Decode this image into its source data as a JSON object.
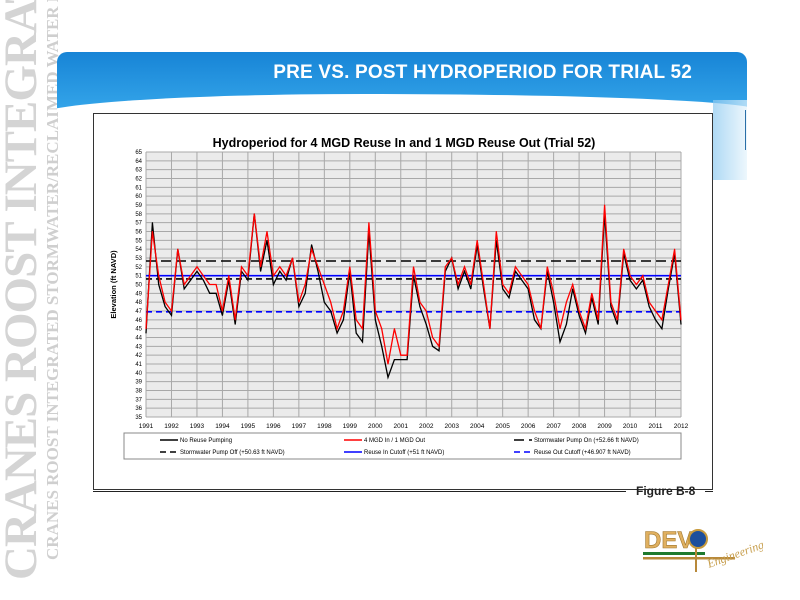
{
  "slide": {
    "title": "PRE VS. POST HYDROPERIOD FOR TRIAL 52",
    "watermark_large": "CRANES ROOST INTEGRATED STORMWATER",
    "watermark_small": "CRANES ROOST INTEGRATED STORMWATER/RECLAIMED WATER FACILITY",
    "figure_label": "Figure B-8",
    "logo_text": "DEVO Engineering",
    "colors": {
      "header": "#1a8ad9",
      "red_series": "#ff0000",
      "black_series": "#000000",
      "blue_lines": "#0000ff",
      "plot_bg": "#ebebeb"
    }
  },
  "chart_data": {
    "type": "line",
    "title": "Hydroperiod for 4 MGD Reuse In and 1 MGD Reuse Out (Trial 52)",
    "xlabel": "",
    "ylabel": "Elevation (ft NAVD)",
    "xlim": [
      1991,
      2012
    ],
    "ylim": [
      35,
      65
    ],
    "xticks": [
      "1991",
      "1992",
      "1993",
      "1994",
      "1995",
      "1996",
      "1997",
      "1998",
      "1999",
      "2000",
      "2001",
      "2002",
      "2003",
      "2004",
      "2005",
      "2006",
      "2007",
      "2008",
      "2009",
      "2010",
      "2011",
      "2012"
    ],
    "yticks": [
      "35",
      "36",
      "37",
      "38",
      "39",
      "40",
      "41",
      "42",
      "43",
      "44",
      "45",
      "46",
      "47",
      "48",
      "49",
      "50",
      "51",
      "52",
      "53",
      "54",
      "55",
      "56",
      "57",
      "58",
      "59",
      "60",
      "61",
      "62",
      "63",
      "64",
      "65"
    ],
    "grid": true,
    "legend_placement": "bottom",
    "x_step_years": 0.25,
    "series": [
      {
        "name": "No Reuse Pumping",
        "color": "#000000",
        "style": "solid",
        "values": [
          44.5,
          57,
          50,
          47.5,
          46.5,
          54,
          49.5,
          50.5,
          51.5,
          50.5,
          49,
          49,
          46.5,
          50.5,
          45.5,
          51.5,
          50.5,
          58,
          51.5,
          55,
          50,
          51.5,
          50.5,
          53,
          47.5,
          49,
          54.5,
          51.5,
          48,
          47,
          44.5,
          46,
          51.5,
          44.5,
          43.5,
          56,
          46,
          43,
          39.5,
          41.5,
          41.5,
          41.5,
          51,
          47.5,
          45.5,
          43,
          42.5,
          51.5,
          53,
          49.5,
          51.5,
          49.5,
          54.5,
          49.5,
          45,
          55,
          49.5,
          48.5,
          51.5,
          50.5,
          49.5,
          46,
          45,
          51.5,
          48,
          43.5,
          45.5,
          49.5,
          46.5,
          44.5,
          48.5,
          45.5,
          58,
          47.5,
          45.5,
          53.5,
          50.5,
          49.5,
          50.5,
          47.5,
          46,
          45,
          49.5,
          53.5,
          45.5
        ]
      },
      {
        "name": "4 MGD In / 1 MGD Out",
        "color": "#ff0000",
        "style": "solid",
        "values": [
          45,
          56,
          51,
          48,
          47,
          54,
          50,
          51,
          52,
          51,
          50,
          50,
          47,
          51,
          46,
          52,
          51,
          58,
          52,
          56,
          51,
          52,
          51,
          53,
          48,
          50,
          54,
          52,
          50,
          48,
          45,
          47,
          52,
          46,
          45,
          57,
          47,
          45,
          41,
          45,
          42,
          42,
          52,
          48,
          47,
          44,
          43,
          52,
          53,
          50,
          52,
          50,
          55,
          50,
          45,
          56,
          50,
          49,
          52,
          51,
          50,
          47,
          45,
          52,
          49,
          45,
          48,
          50,
          47,
          45,
          49,
          46,
          59,
          48,
          46,
          54,
          51,
          50,
          51,
          48,
          47,
          46,
          50,
          54,
          46
        ]
      },
      {
        "name": "Stormwater Pump On (+52.66 ft NAVD)",
        "color": "#000000",
        "style": "long-dash",
        "value": 52.66
      },
      {
        "name": "Stormwater Pump Off (+50.63 ft NAVD)",
        "color": "#000000",
        "style": "dash",
        "value": 50.63
      },
      {
        "name": "Reuse In Cutoff (+51 ft NAVD)",
        "color": "#0000ff",
        "style": "solid",
        "value": 51
      },
      {
        "name": "Reuse Out Cutoff (+46.907 ft NAVD)",
        "color": "#0000ff",
        "style": "dash",
        "value": 46.907
      }
    ]
  }
}
